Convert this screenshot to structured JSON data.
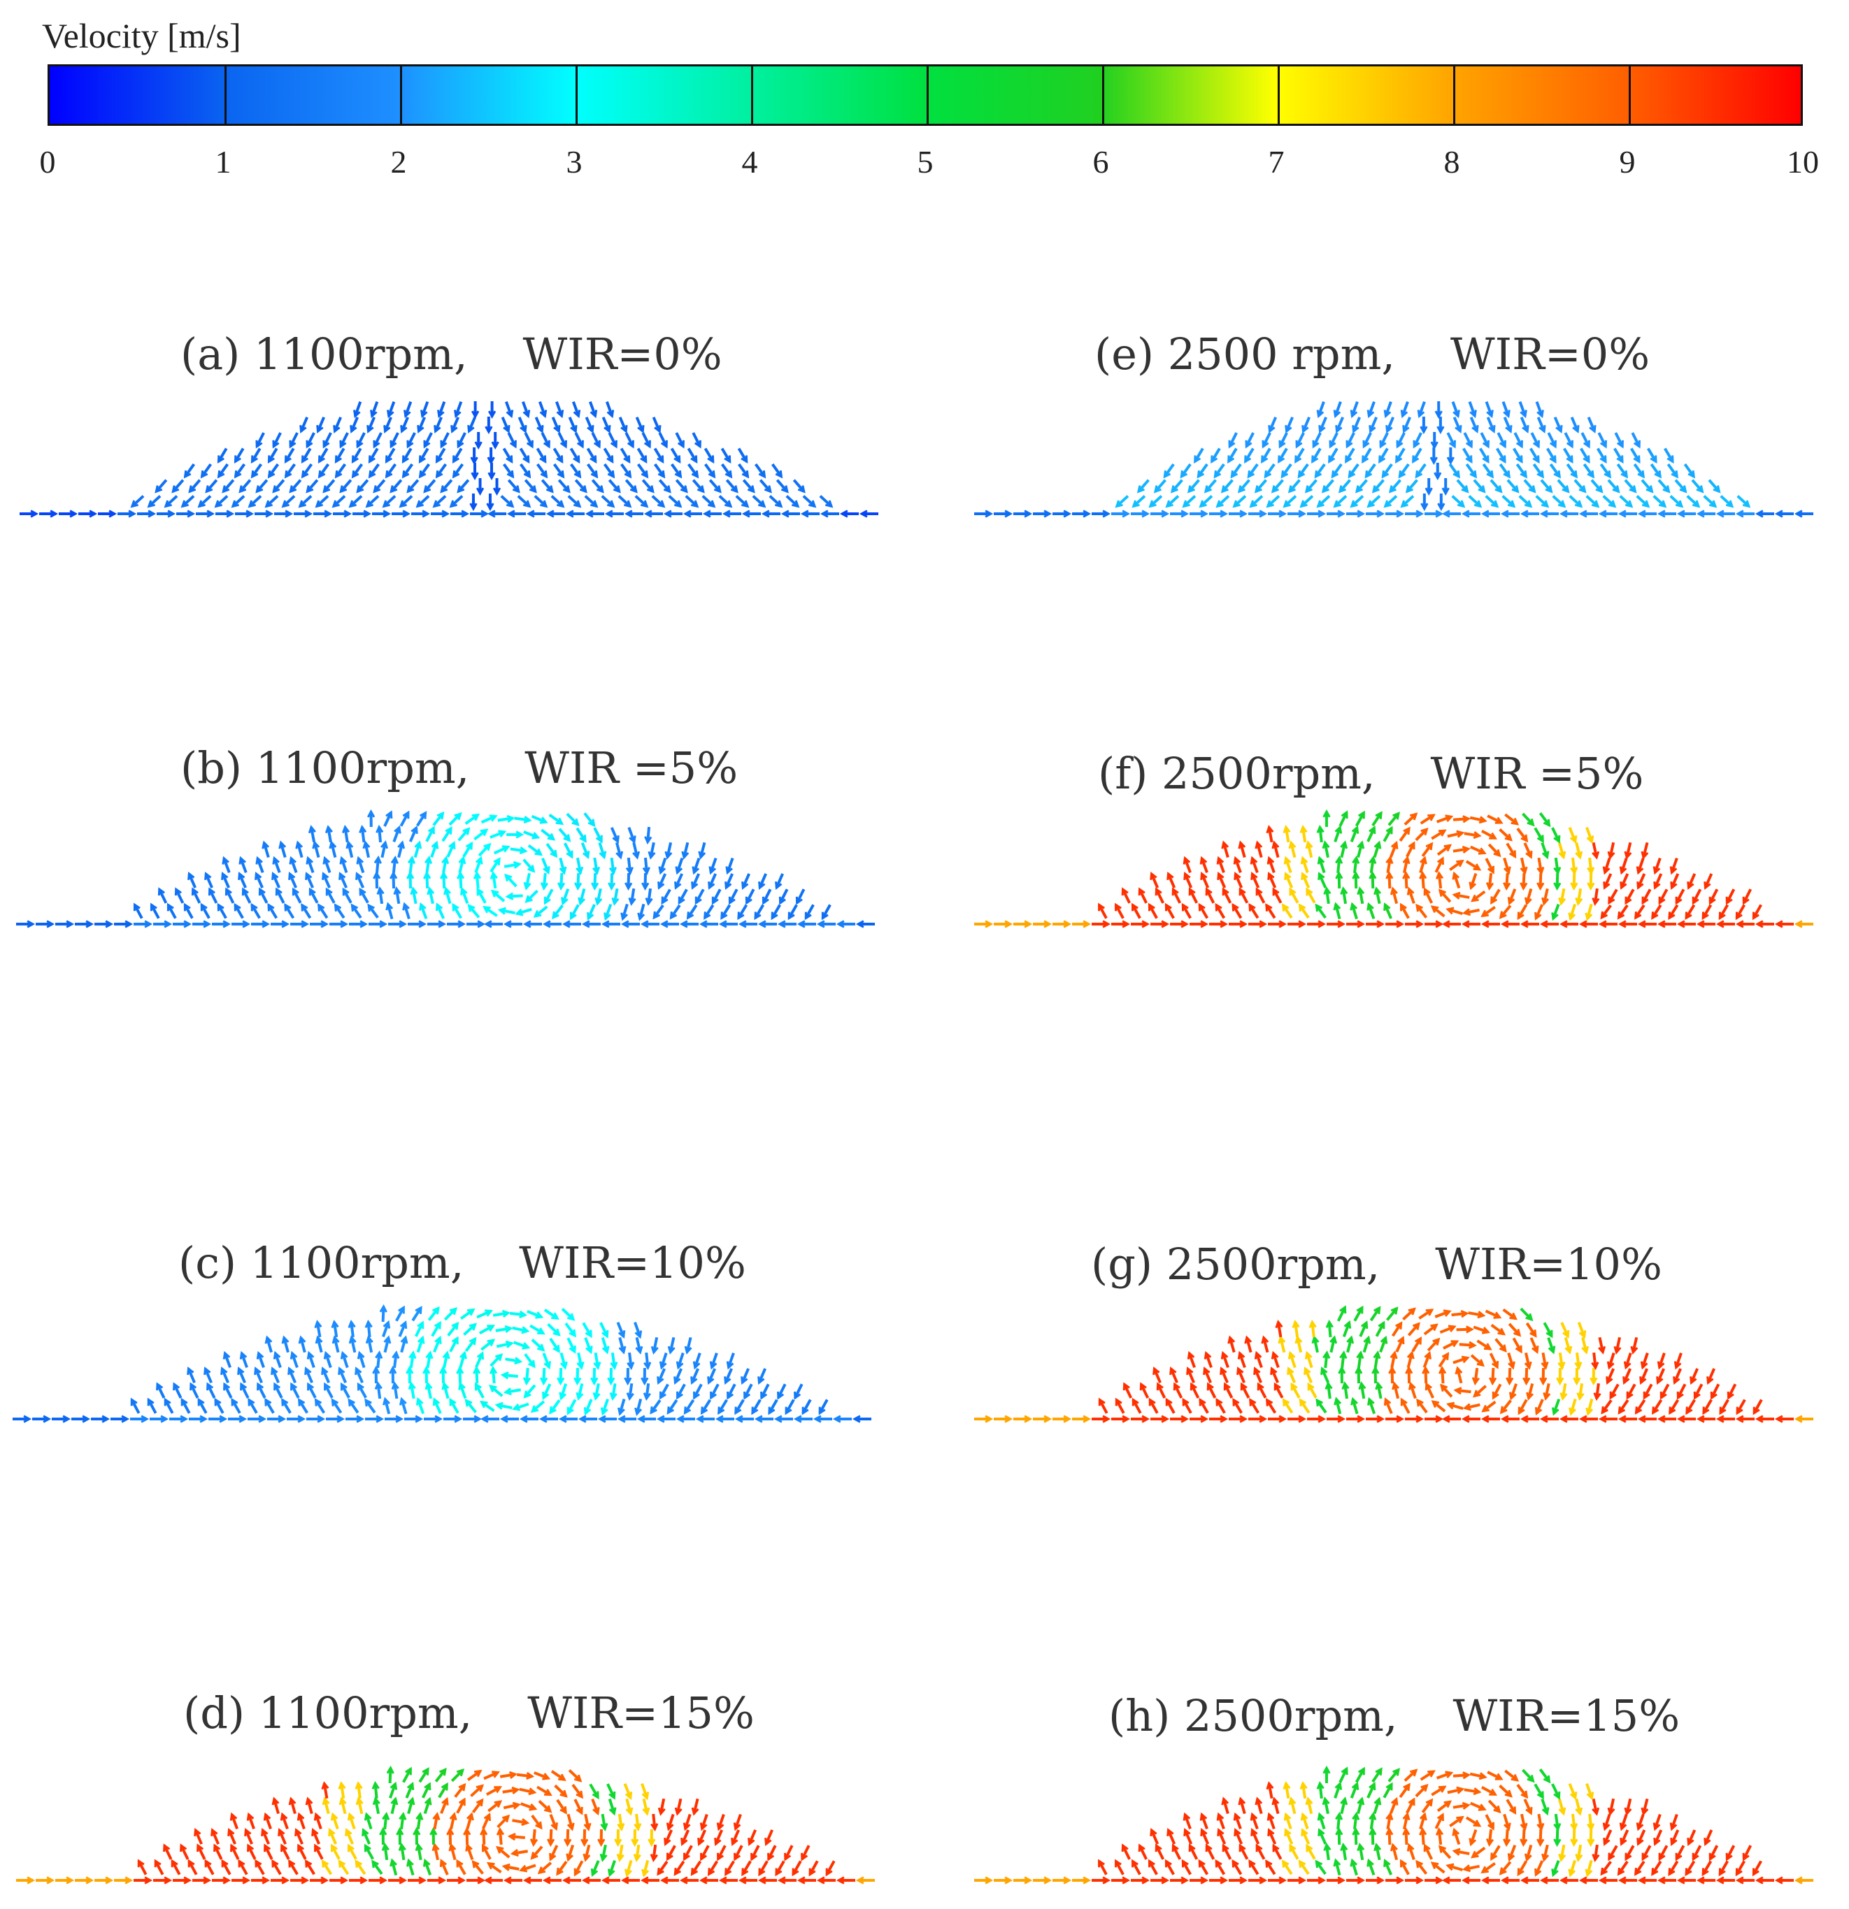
{
  "legend": {
    "title": "Velocity [m/s]",
    "ticks": [
      "0",
      "1",
      "2",
      "3",
      "4",
      "5",
      "6",
      "7",
      "8",
      "9",
      "10"
    ],
    "colors": [
      "#0000ff",
      "#1e90ff",
      "#00ffff",
      "#00e040",
      "#ffff00",
      "#ff0000"
    ]
  },
  "panels": [
    {
      "title": "(a) 1100rpm,    WIR=0%",
      "rpm": 1100,
      "wir": 0,
      "pattern": "split",
      "speed": 1.4
    },
    {
      "title": "(b) 1100rpm,    WIR =5%",
      "rpm": 1100,
      "wir": 5,
      "pattern": "vortex",
      "speed": 2.0
    },
    {
      "title": "(c) 1100rpm,    WIR=10%",
      "rpm": 1100,
      "wir": 10,
      "pattern": "vortex",
      "speed": 2.2
    },
    {
      "title": "(d) 1100rpm,    WIR=15%",
      "rpm": 1100,
      "wir": 15,
      "pattern": "vortex-hot",
      "speed": 6.5
    },
    {
      "title": "(e) 2500 rpm,    WIR=0%",
      "rpm": 2500,
      "wir": 0,
      "pattern": "split",
      "speed": 2.5
    },
    {
      "title": "(f) 2500rpm,    WIR =5%",
      "rpm": 2500,
      "wir": 5,
      "pattern": "vortex-hot",
      "speed": 6.0
    },
    {
      "title": "(g) 2500rpm,    WIR=10%",
      "rpm": 2500,
      "wir": 10,
      "pattern": "vortex-hot",
      "speed": 7.0
    },
    {
      "title": "(h) 2500rpm,    WIR=15%",
      "rpm": 2500,
      "wir": 15,
      "pattern": "vortex-hot",
      "speed": 7.5
    }
  ]
}
